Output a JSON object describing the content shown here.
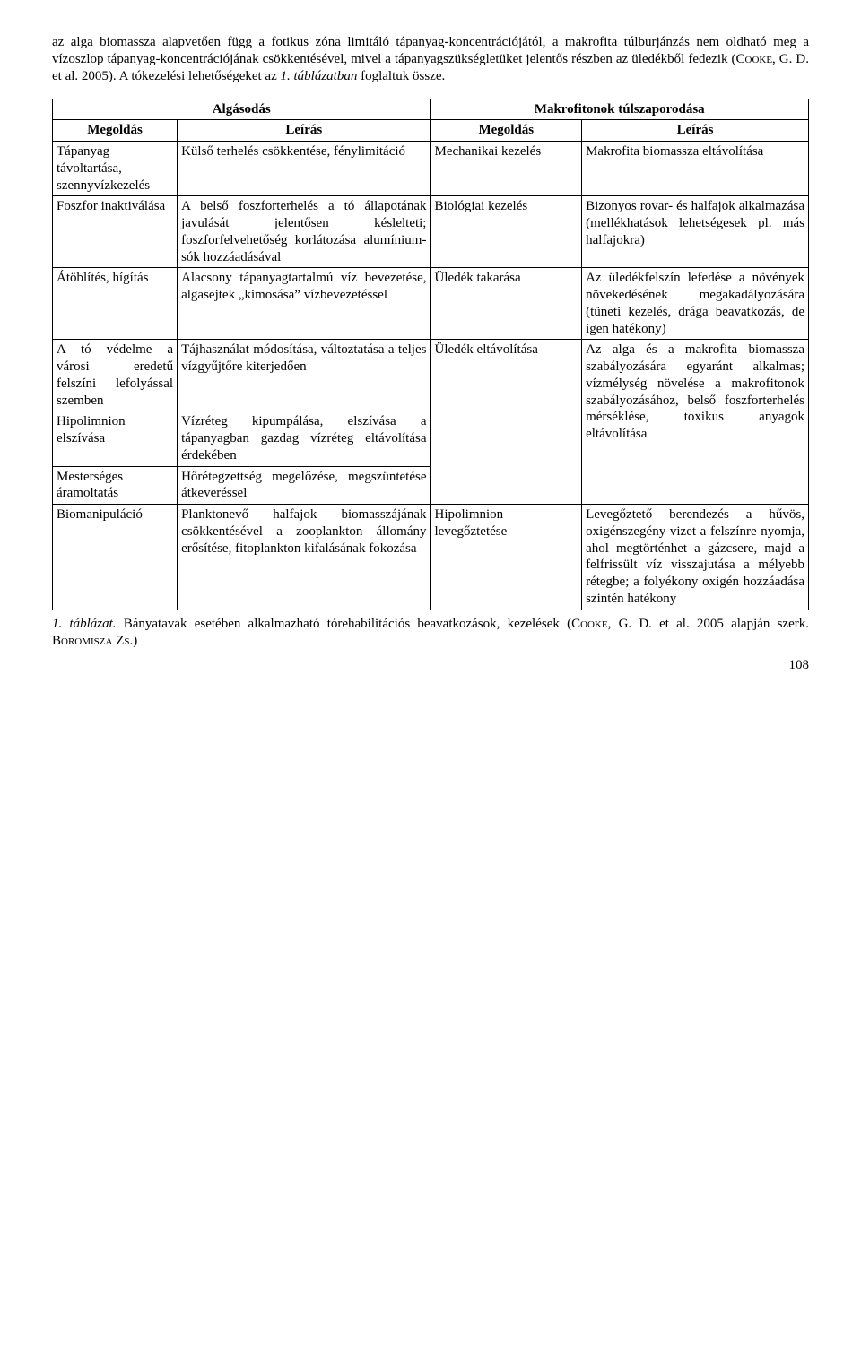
{
  "intro": {
    "text_parts": [
      "az alga biomassza alapvetően függ a fotikus zóna limitáló tápanyag-koncentrációjától, a makrofita túlburjánzás nem oldható meg a vízoszlop tápanyag-koncentrációjának csökkentésével, mivel a tápanyagszükségletüket jelentős részben az üledékből fedezik (",
      "Cooke, G. D.",
      " et al. 2005)."
    ],
    "sentence2_parts": [
      " A tókezelési lehetőségeket az ",
      "1. táblázatban",
      " foglaltuk össze."
    ]
  },
  "table": {
    "top_headers": {
      "left": "Algásodás",
      "right": "Makrofitonok túlszaporodása"
    },
    "sub_headers": {
      "c1": "Megoldás",
      "c2": "Leírás",
      "c3": "Megoldás",
      "c4": "Leírás"
    },
    "rows": [
      {
        "c1": "Tápanyag távoltartása, szennyvízkezelés",
        "c2": "Külső terhelés csökkentése, fénylimitáció",
        "c3": "Mechanikai kezelés",
        "c4": "Makrofita biomassza eltávolítása"
      },
      {
        "c1": "Foszfor inaktiválása",
        "c2": "A belső foszforterhelés a tó állapotának javulását jelentősen késlelteti; foszforfelvehetőség korlátozása alumínium-sók hozzáadásával",
        "c3": "Biológiai kezelés",
        "c4": "Bizonyos rovar- és halfajok alkalmazása (mellékhatások lehetségesek pl. más halfajokra)"
      },
      {
        "c1": "Átöblítés, hígítás",
        "c2": "Alacsony tápanyagtartalmú víz bevezetése, algasejtek „kimosása” vízbevezetéssel",
        "c3": "Üledék takarása",
        "c4": "Az üledékfelszín lefedése a növények növekedésének megakadályozására (tüneti kezelés, drága beavatkozás, de igen hatékony)"
      },
      {
        "c1": "A tó védelme a városi eredetű felszíni lefolyással szemben",
        "c2": "Tájhasználat módosítása, változtatása a teljes vízgyűjtőre kiterjedően",
        "c3": "Üledék eltávolítása",
        "c3_rowspan": 3,
        "c4": "Az alga és a makrofita biomassza szabályozására egyaránt alkalmas; vízmélység növelése a makrofitonok szabályozásához, belső foszforterhelés mérséklése, toxikus anyagok eltávolítása",
        "c4_rowspan": 3
      },
      {
        "c1": "Hipolimnion elszívása",
        "c2": "Vízréteg kipumpálása, elszívása a tápanyagban gazdag vízréteg eltávolítása érdekében"
      },
      {
        "c1": "Mesterséges áramoltatás",
        "c2": "Hőrétegzettség megelőzése, megszüntetése átkeveréssel"
      },
      {
        "c1": "Biomanipuláció",
        "c2": "Planktonevő halfajok biomasszájának csökkentésével a zooplankton állomány erősítése, fitoplankton kifalásának fokozása",
        "c3": "Hipolimnion levegőztetése",
        "c4": "Levegőztető berendezés a hűvös, oxigénszegény vizet a felszínre nyomja, ahol megtörténhet a gázcsere, majd a felfrissült víz visszajutása a mélyebb rétegbe; a folyékony oxigén hozzáadása szintén hatékony"
      }
    ]
  },
  "caption": {
    "lead_italic": "1. táblázat.",
    "text1": " Bányatavak esetében alkalmazható tórehabilitációs beavatkozások, kezelések (",
    "author1": "Cooke, G. D.",
    "text2": " et al. 2005 alapján szerk. ",
    "author2": "Boromisza Zs.",
    "text3": ")"
  },
  "page_number": "108"
}
